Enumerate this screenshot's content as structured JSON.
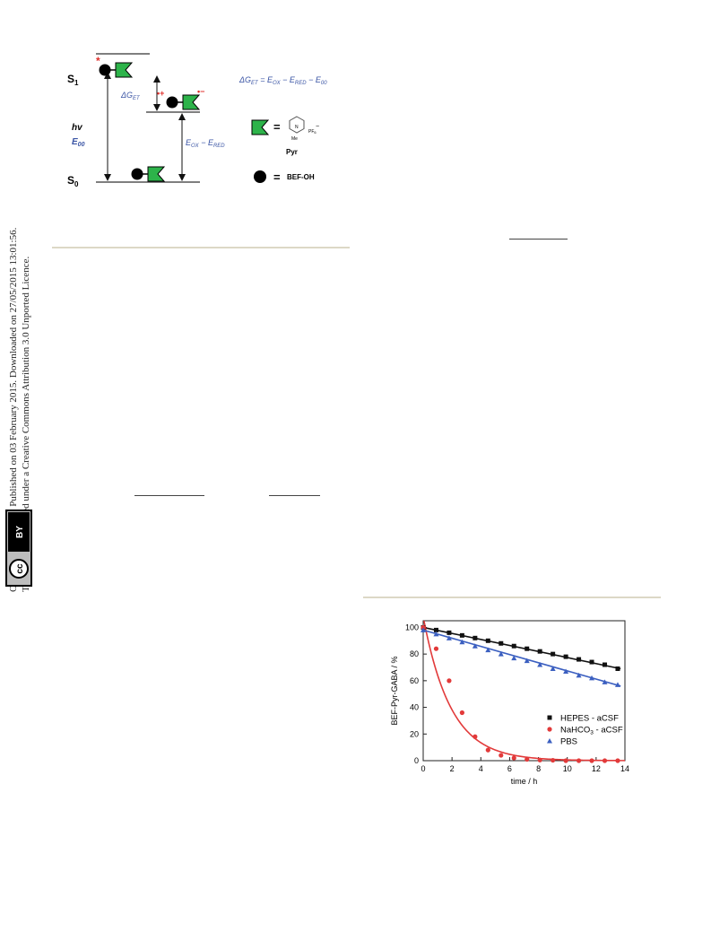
{
  "license_note": {
    "line1": "Open Access Article. Published on 03 February 2015. Downloaded on 27/05/2015 13:01:56.",
    "line2": "This article is licensed under a Creative Commons Attribution 3.0 Unported Licence.",
    "badge_cc": "cc",
    "badge_by": "BY"
  },
  "scheme": {
    "s1": "S",
    "s1_sub": "1",
    "s0": "S",
    "s0_sub": "0",
    "hv": "hv",
    "e00": "E",
    "e00_sub": "00",
    "dg": "ΔG",
    "dg_sub": "ET",
    "star": "*",
    "radical_plus": "•+",
    "radical_minus": "•−",
    "eox_ered": "E",
    "eox_sub": "OX",
    "minus": " − E",
    "ered_sub": "RED",
    "equation": "ΔG",
    "equation_sub": "ET",
    "equation_rest": " = E",
    "eq_ox_sub": "OX",
    "eq_minus1": " − E",
    "eq_red_sub": "RED",
    "eq_minus2": " − E",
    "eq_00_sub": "00",
    "pyr_equals": "=",
    "pf6": "PF",
    "pf6_sub": "6",
    "pyr_minus": "−",
    "me": "Me",
    "n_plus": "N",
    "pyr_label": "Pyr",
    "bef_equals": "=",
    "bef_label": "BEF-OH",
    "colors": {
      "green": "#2db34a",
      "blue": "#3b55a5",
      "red": "#e0302b"
    }
  },
  "chart_data": {
    "type": "scatter",
    "xlabel": "time / h",
    "ylabel": "BEF-Pyr-GABA / %",
    "xlim": [
      0,
      14
    ],
    "ylim": [
      0,
      105
    ],
    "xticks": [
      "0",
      "2",
      "4",
      "6",
      "8",
      "10",
      "12",
      "14"
    ],
    "yticks": [
      "0",
      "20",
      "40",
      "60",
      "80",
      "100"
    ],
    "legend_position": "right",
    "series": [
      {
        "name": "HEPES - aCSF",
        "marker": "square",
        "color": "#111111",
        "x": [
          0,
          0.9,
          1.8,
          2.7,
          3.6,
          4.5,
          5.4,
          6.3,
          7.2,
          8.1,
          9.0,
          9.9,
          10.8,
          11.7,
          12.6,
          13.5
        ],
        "y": [
          100,
          98,
          96,
          94,
          92,
          90,
          88,
          86,
          84,
          82,
          80,
          78,
          76,
          74,
          72,
          69
        ],
        "fit": {
          "start": 100,
          "end": 69
        }
      },
      {
        "name": "NaHCO3 - aCSF",
        "marker": "circle",
        "color": "#e23a3a",
        "x": [
          0,
          0.9,
          1.8,
          2.7,
          3.6,
          4.5,
          5.4,
          6.3,
          7.2,
          8.1,
          9.0,
          9.9,
          10.8,
          11.7,
          12.6,
          13.5
        ],
        "y": [
          100,
          84,
          60,
          36,
          18,
          8,
          4,
          2,
          1,
          0.5,
          0.3,
          0,
          0,
          0,
          0,
          0
        ],
        "fit": {
          "amplitude": 108,
          "rate": 0.52
        }
      },
      {
        "name": "PBS",
        "marker": "triangle",
        "color": "#3b5fc0",
        "x": [
          0,
          0.9,
          1.8,
          2.7,
          3.6,
          4.5,
          5.4,
          6.3,
          7.2,
          8.1,
          9.0,
          9.9,
          10.8,
          11.7,
          12.6,
          13.5
        ],
        "y": [
          98,
          95,
          92,
          89,
          86,
          83,
          80,
          77,
          75,
          72,
          69,
          67,
          64,
          62,
          59,
          57
        ],
        "fit": {
          "start": 98,
          "end": 56
        }
      }
    ],
    "legend": [
      "HEPES - aCSF",
      "NaHCO",
      "3",
      " - aCSF",
      "PBS"
    ]
  }
}
